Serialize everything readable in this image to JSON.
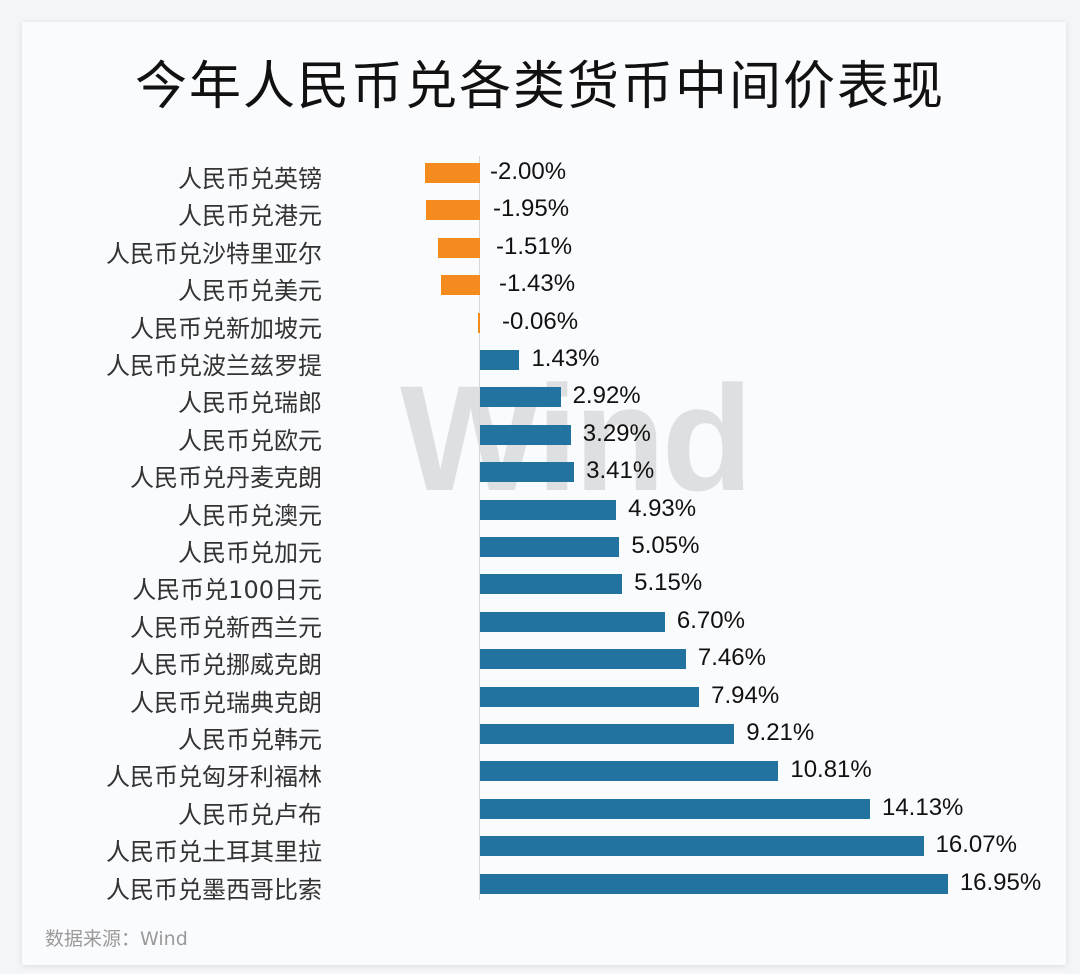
{
  "title": "今年人民币兑各类货币中间价表现",
  "watermark": "Wind",
  "source": "数据来源：Wind",
  "colors": {
    "negative": "#f58a1f",
    "positive": "#2273a0"
  },
  "chart_data": {
    "type": "bar",
    "orientation": "horizontal",
    "title": "今年人民币兑各类货币中间价表现",
    "xlabel": "",
    "ylabel": "",
    "unit": "%",
    "grid": false,
    "legend": null,
    "categories": [
      "人民币兑英镑",
      "人民币兑港元",
      "人民币兑沙特里亚尔",
      "人民币兑美元",
      "人民币兑新加坡元",
      "人民币兑波兰兹罗提",
      "人民币兑瑞郎",
      "人民币兑欧元",
      "人民币兑丹麦克朗",
      "人民币兑澳元",
      "人民币兑加元",
      "人民币兑100日元",
      "人民币兑新西兰元",
      "人民币兑挪威克朗",
      "人民币兑瑞典克朗",
      "人民币兑韩元",
      "人民币兑匈牙利福林",
      "人民币兑卢布",
      "人民币兑土耳其里拉",
      "人民币兑墨西哥比索"
    ],
    "values": [
      -2.0,
      -1.95,
      -1.51,
      -1.43,
      -0.06,
      1.43,
      2.92,
      3.29,
      3.41,
      4.93,
      5.05,
      5.15,
      6.7,
      7.46,
      7.94,
      9.21,
      10.81,
      14.13,
      16.07,
      16.95
    ],
    "value_labels": [
      "-2.00%",
      "-1.95%",
      "-1.51%",
      "-1.43%",
      "-0.06%",
      "1.43%",
      "2.92%",
      "3.29%",
      "3.41%",
      "4.93%",
      "5.05%",
      "5.15%",
      "6.70%",
      "7.46%",
      "7.94%",
      "9.21%",
      "10.81%",
      "14.13%",
      "16.07%",
      "16.95%"
    ],
    "xlim": [
      -2.5,
      18
    ]
  },
  "source_note": "数据来源：Wind"
}
